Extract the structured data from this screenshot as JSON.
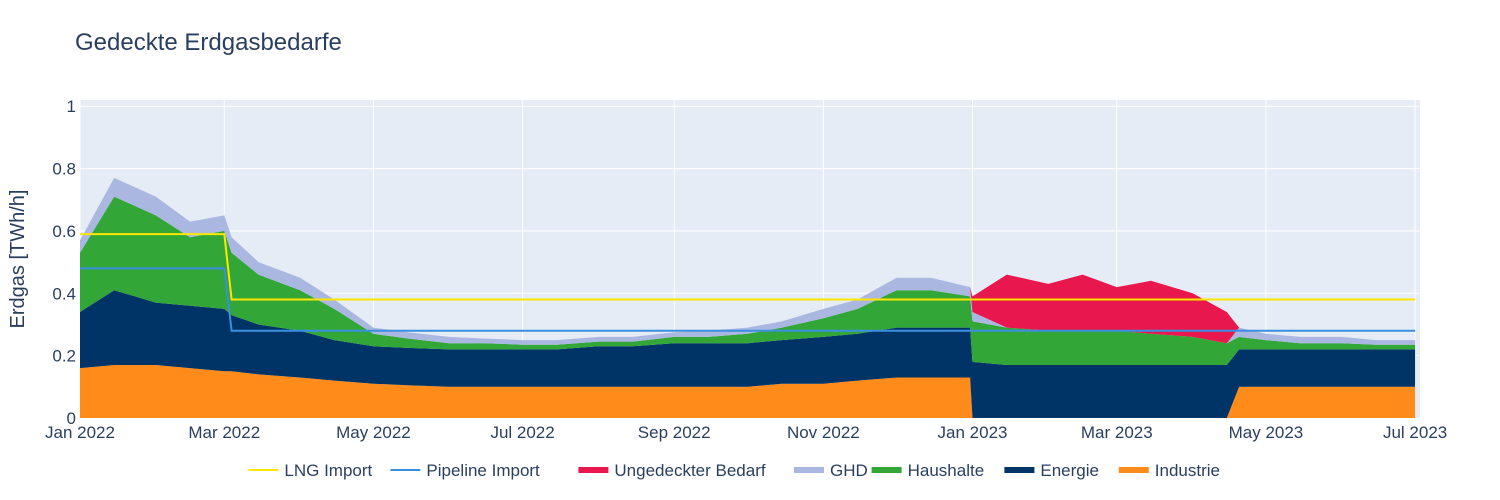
{
  "chart_data": {
    "type": "area",
    "title": "Gedeckte Erdgasbedarfe",
    "xlabel": "",
    "ylabel": "Erdgas [TWh/h]",
    "x_range": [
      "2022-01-01",
      "2023-07-03"
    ],
    "ylim": [
      0,
      1.02
    ],
    "x_ticks": [
      "Jan 2022",
      "Mar 2022",
      "May 2022",
      "Jul 2022",
      "Sep 2022",
      "Nov 2022",
      "Jan 2023",
      "Mar 2023",
      "May 2023",
      "Jul 2023"
    ],
    "x_tick_dates": [
      "2022-01-01",
      "2022-03-01",
      "2022-05-01",
      "2022-07-01",
      "2022-09-01",
      "2022-11-01",
      "2023-01-01",
      "2023-03-01",
      "2023-05-01",
      "2023-07-01"
    ],
    "y_ticks": [
      0,
      0.2,
      0.4,
      0.6,
      0.8,
      1
    ],
    "y_tick_labels": [
      "0",
      "0.2",
      "0.4",
      "0.6",
      "0.8",
      "1"
    ],
    "grid": true,
    "legend_position": "bottom-center",
    "dates": [
      "2022-01-01",
      "2022-01-15",
      "2022-02-01",
      "2022-02-15",
      "2022-03-01",
      "2022-03-04",
      "2022-03-15",
      "2022-04-01",
      "2022-04-15",
      "2022-05-01",
      "2022-05-15",
      "2022-06-01",
      "2022-06-15",
      "2022-07-01",
      "2022-07-15",
      "2022-08-01",
      "2022-08-15",
      "2022-09-01",
      "2022-09-15",
      "2022-10-01",
      "2022-10-15",
      "2022-11-01",
      "2022-11-15",
      "2022-12-01",
      "2022-12-15",
      "2022-12-31",
      "2023-01-01",
      "2023-01-15",
      "2023-02-01",
      "2023-02-15",
      "2023-03-01",
      "2023-03-15",
      "2023-04-01",
      "2023-04-15",
      "2023-04-20",
      "2023-05-01",
      "2023-05-15",
      "2023-06-01",
      "2023-06-15",
      "2023-07-01"
    ],
    "series": [
      {
        "name": "Industrie",
        "color": "#ff8c1a",
        "values": [
          0.16,
          0.17,
          0.17,
          0.16,
          0.15,
          0.15,
          0.14,
          0.13,
          0.12,
          0.11,
          0.105,
          0.1,
          0.1,
          0.1,
          0.1,
          0.1,
          0.1,
          0.1,
          0.1,
          0.1,
          0.11,
          0.11,
          0.12,
          0.13,
          0.13,
          0.13,
          0.0,
          0.0,
          0.0,
          0.0,
          0.0,
          0.0,
          0.0,
          0.0,
          0.1,
          0.1,
          0.1,
          0.1,
          0.1,
          0.1
        ]
      },
      {
        "name": "Energie",
        "color": "#003366",
        "values": [
          0.18,
          0.24,
          0.2,
          0.2,
          0.2,
          0.18,
          0.16,
          0.15,
          0.13,
          0.12,
          0.12,
          0.12,
          0.12,
          0.12,
          0.12,
          0.13,
          0.13,
          0.14,
          0.14,
          0.14,
          0.14,
          0.15,
          0.15,
          0.16,
          0.16,
          0.16,
          0.18,
          0.17,
          0.17,
          0.17,
          0.17,
          0.17,
          0.17,
          0.17,
          0.12,
          0.12,
          0.12,
          0.12,
          0.12,
          0.12
        ]
      },
      {
        "name": "Haushalte",
        "color": "#33a638",
        "values": [
          0.19,
          0.3,
          0.28,
          0.22,
          0.25,
          0.2,
          0.16,
          0.13,
          0.1,
          0.04,
          0.03,
          0.02,
          0.02,
          0.015,
          0.015,
          0.015,
          0.015,
          0.02,
          0.02,
          0.03,
          0.04,
          0.06,
          0.08,
          0.12,
          0.12,
          0.1,
          0.13,
          0.12,
          0.11,
          0.11,
          0.11,
          0.1,
          0.09,
          0.07,
          0.04,
          0.03,
          0.02,
          0.02,
          0.015,
          0.015
        ]
      },
      {
        "name": "GHD",
        "color": "#aab7e0",
        "values": [
          0.04,
          0.06,
          0.06,
          0.05,
          0.05,
          0.05,
          0.04,
          0.04,
          0.03,
          0.02,
          0.02,
          0.02,
          0.015,
          0.015,
          0.015,
          0.015,
          0.015,
          0.015,
          0.02,
          0.02,
          0.02,
          0.03,
          0.03,
          0.04,
          0.04,
          0.03,
          0.03,
          0.0,
          0.0,
          0.0,
          0.0,
          0.0,
          0.0,
          0.0,
          0.03,
          0.02,
          0.02,
          0.02,
          0.015,
          0.015
        ]
      },
      {
        "name": "Ungedeckter Bedarf",
        "color": "#e8174d",
        "values": [
          0,
          0,
          0,
          0,
          0,
          0,
          0,
          0,
          0,
          0,
          0,
          0,
          0,
          0,
          0,
          0,
          0,
          0,
          0,
          0,
          0,
          0,
          0,
          0,
          0,
          0,
          0.05,
          0.17,
          0.15,
          0.18,
          0.14,
          0.17,
          0.14,
          0.1,
          0,
          0,
          0,
          0,
          0,
          0
        ]
      },
      {
        "name": "Pipeline Import",
        "color": "#3a8fe0",
        "line": true,
        "values": [
          0.48,
          0.48,
          0.48,
          0.48,
          0.48,
          0.28,
          0.28,
          0.28,
          0.28,
          0.28,
          0.28,
          0.28,
          0.28,
          0.28,
          0.28,
          0.28,
          0.28,
          0.28,
          0.28,
          0.28,
          0.28,
          0.28,
          0.28,
          0.28,
          0.28,
          0.28,
          0.28,
          0.28,
          0.28,
          0.28,
          0.28,
          0.28,
          0.28,
          0.28,
          0.28,
          0.28,
          0.28,
          0.28,
          0.28,
          0.28
        ]
      },
      {
        "name": "LNG Import",
        "color": "#ffe600",
        "line": true,
        "values": [
          0.59,
          0.59,
          0.59,
          0.59,
          0.59,
          0.38,
          0.38,
          0.38,
          0.38,
          0.38,
          0.38,
          0.38,
          0.38,
          0.38,
          0.38,
          0.38,
          0.38,
          0.38,
          0.38,
          0.38,
          0.38,
          0.38,
          0.38,
          0.38,
          0.38,
          0.38,
          0.38,
          0.38,
          0.38,
          0.38,
          0.38,
          0.38,
          0.38,
          0.38,
          0.38,
          0.38,
          0.38,
          0.38,
          0.38,
          0.38
        ]
      }
    ],
    "legend_order": [
      "LNG Import",
      "Pipeline Import",
      "Ungedeckter Bedarf",
      "GHD",
      "Haushalte",
      "Energie",
      "Industrie"
    ]
  },
  "colors": {
    "plot_bg": "#e5ecf6",
    "grid": "#ffffff",
    "text": "#2a3f5f"
  }
}
